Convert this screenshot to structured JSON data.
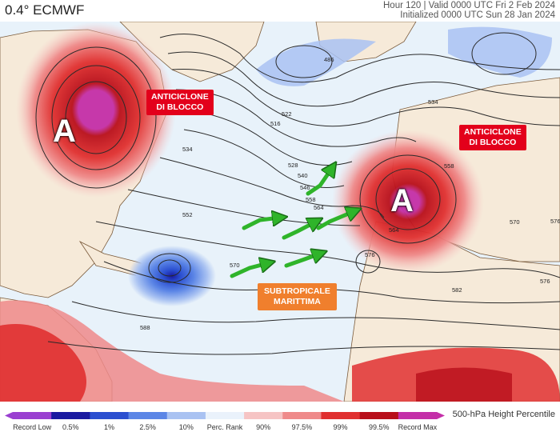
{
  "header": {
    "title": "0.4° ECMWF",
    "line1": "Hour 120 | Valid 0000 UTC Fri 2 Feb 2024",
    "line2": "Initialized 0000 UTC Sun 28 Jan 2024"
  },
  "annotations": {
    "label_west": "ANTICICLONE\nDI BLOCCO",
    "label_east": "ANTICICLONE\nDI BLOCCO",
    "label_south": "SUBTROPICALE\nMARITTIMA",
    "high_west": "A",
    "high_east": "A"
  },
  "contour_labels": [
    "486",
    "516",
    "522",
    "528",
    "534",
    "540",
    "546",
    "552",
    "558",
    "564",
    "570",
    "576",
    "582",
    "588",
    "534",
    "558",
    "564",
    "570",
    "576",
    "576"
  ],
  "legend": {
    "title": "500-hPa Height Percentile",
    "labels": [
      "Record Low",
      "0.5%",
      "1%",
      "2.5%",
      "10%",
      "Perc. Rank",
      "90%",
      "97.5%",
      "99%",
      "99.5%",
      "Record Max"
    ],
    "colors": [
      "#9a3fd1",
      "#1a1aa0",
      "#2b4fd0",
      "#5c86e6",
      "#a9c2f2",
      "#eaf2fb",
      "#f6c4c4",
      "#ef8a8a",
      "#e03030",
      "#b80f1a",
      "#c42fa8"
    ]
  },
  "colors": {
    "ocean": "#e8f2fa",
    "land": "#f6ead9",
    "arrow": "#2fb42a",
    "label_red": "#e3001b",
    "label_orange": "#f07f2d"
  }
}
